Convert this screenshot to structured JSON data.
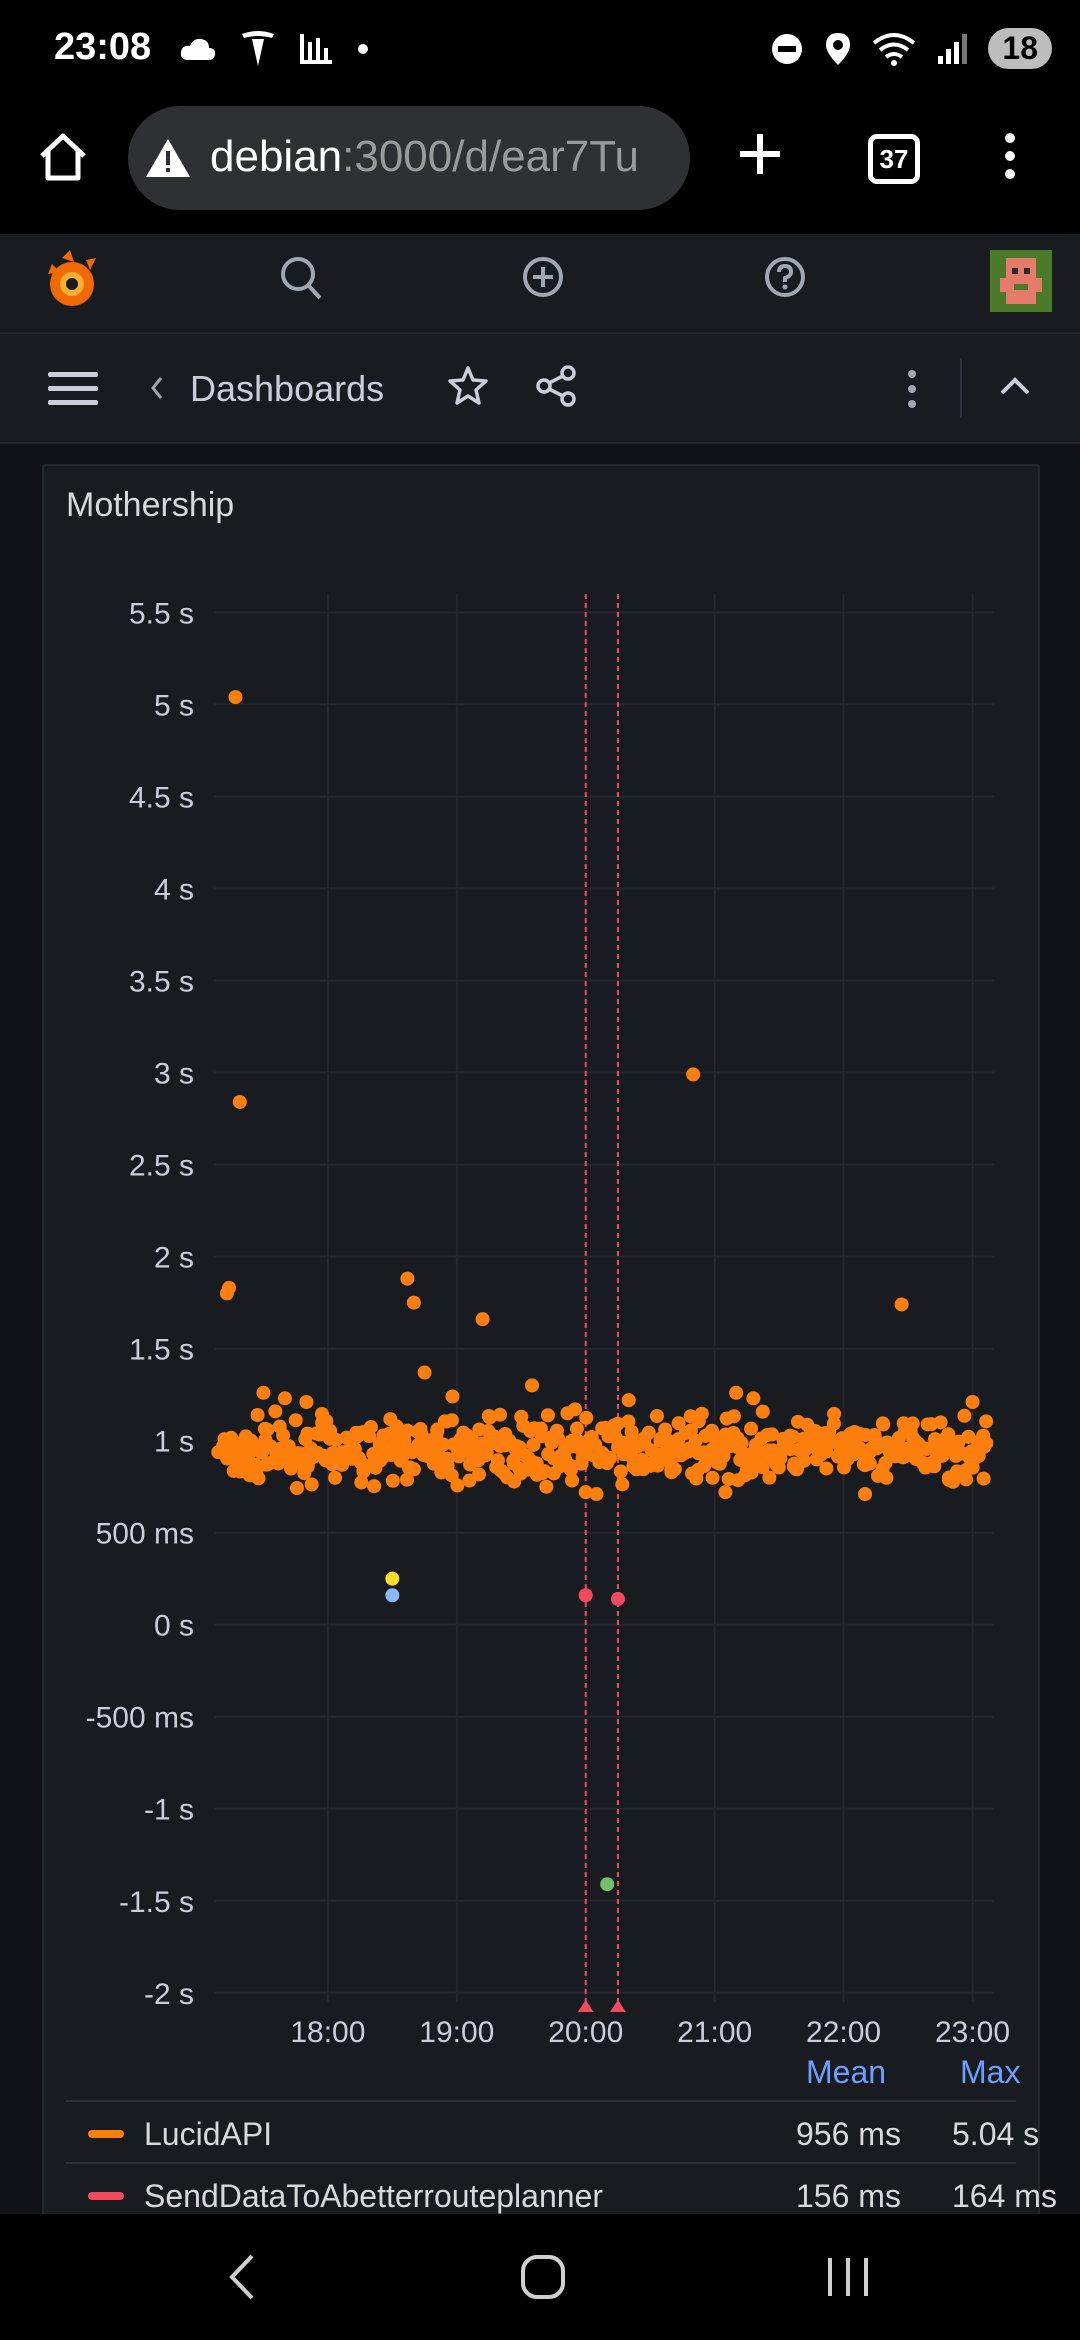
{
  "status_bar": {
    "time": "23:08",
    "battery": "18"
  },
  "browser": {
    "url_host": "debian",
    "url_path": ":3000/d/ear7Tu",
    "tab_count": "37"
  },
  "breadcrumb": {
    "label": "Dashboards"
  },
  "panel": {
    "title": "Mothership"
  },
  "chart_data": {
    "type": "scatter",
    "title": "Mothership",
    "ylim": [
      -2.05,
      5.6
    ],
    "y_ticks": [
      5.5,
      5,
      4.5,
      4,
      3.5,
      3,
      2.5,
      2,
      1.5,
      1,
      0.5,
      0,
      -0.5,
      -1,
      -1.5,
      -2
    ],
    "y_tick_labels": [
      "5.5 s",
      "5 s",
      "4.5 s",
      "4 s",
      "3.5 s",
      "3 s",
      "2.5 s",
      "2 s",
      "1.5 s",
      "1 s",
      "500 ms",
      "0 s",
      "-500 ms",
      "-1 s",
      "-1.5 s",
      "-2 s"
    ],
    "x_ticks": [
      "18:00",
      "19:00",
      "20:00",
      "21:00",
      "22:00",
      "23:00"
    ],
    "xlim": [
      "17:07",
      "23:10"
    ],
    "annotations": [
      "20:00",
      "20:15"
    ],
    "grid": true,
    "series": [
      {
        "name": "LucidAPI",
        "color": "#ff7f0e",
        "mean": "956 ms",
        "max": "5.04 s",
        "band_y": [
          0.75,
          1.15
        ],
        "points": [
          [
            "17:17",
            5.04
          ],
          [
            "17:19",
            2.84
          ],
          [
            "17:14",
            1.83
          ],
          [
            "17:13",
            1.8
          ],
          [
            "18:37",
            1.88
          ],
          [
            "18:40",
            1.75
          ],
          [
            "19:12",
            1.66
          ],
          [
            "20:50",
            2.99
          ],
          [
            "22:27",
            1.74
          ],
          [
            "18:45",
            1.37
          ],
          [
            "18:58",
            1.24
          ],
          [
            "19:35",
            1.3
          ],
          [
            "20:20",
            1.22
          ],
          [
            "21:10",
            1.26
          ],
          [
            "21:18",
            1.23
          ],
          [
            "23:00",
            1.21
          ],
          [
            "17:30",
            1.26
          ],
          [
            "17:50",
            1.21
          ],
          [
            "19:55",
            1.17
          ],
          [
            "20:00",
            0.72
          ],
          [
            "20:05",
            0.71
          ],
          [
            "21:05",
            0.72
          ],
          [
            "22:10",
            0.71
          ],
          [
            "19:30",
            1.13
          ],
          [
            "17:40",
            1.23
          ]
        ]
      },
      {
        "name": "SendDataToAbetterrouteplanner",
        "color": "#f2495c",
        "mean": "156 ms",
        "max": "164 ms",
        "points": [
          [
            "20:00",
            0.16
          ],
          [
            "20:15",
            0.14
          ]
        ]
      },
      {
        "name": "",
        "color": "#fade2a",
        "points": [
          [
            "18:30",
            0.25
          ]
        ]
      },
      {
        "name": "",
        "color": "#8ab8ff",
        "points": [
          [
            "18:30",
            0.16
          ]
        ]
      },
      {
        "name": "",
        "color": "#73bf69",
        "points": [
          [
            "20:10",
            -1.41
          ]
        ]
      }
    ]
  },
  "legend": {
    "headers": [
      "Mean",
      "Max"
    ],
    "rows": [
      {
        "name": "LucidAPI",
        "color": "#ff7f0e",
        "mean": "956 ms",
        "max": "5.04 s"
      },
      {
        "name": "SendDataToAbetterrouteplanner",
        "color": "#f2495c",
        "mean": "156 ms",
        "max": "164 ms"
      }
    ]
  }
}
